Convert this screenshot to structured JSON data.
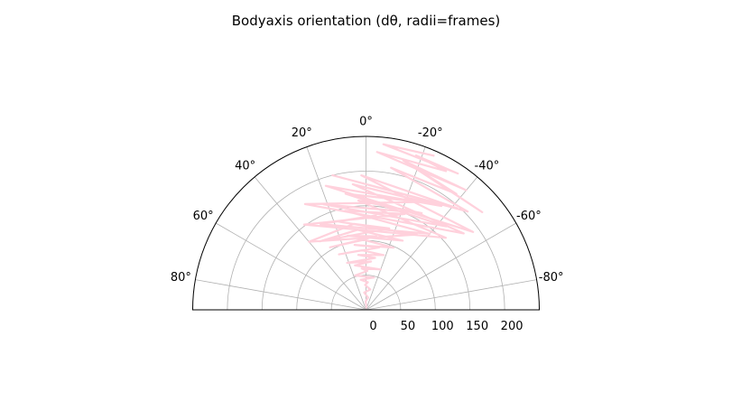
{
  "chart_data": {
    "type": "line",
    "projection": "polar-half",
    "title": "Bodyaxis orientation (dθ, radii=frames)",
    "theta_zero": "top",
    "theta_direction": "counterclockwise",
    "theta_range_deg": [
      -90,
      90
    ],
    "r_range": [
      0,
      250
    ],
    "r_ticks": [
      0,
      50,
      100,
      150,
      200
    ],
    "theta_ticks_deg": [
      80,
      60,
      40,
      20,
      0,
      -20,
      -40,
      -60,
      -80
    ],
    "theta_tick_labels": [
      "80°",
      "60°",
      "40°",
      "20°",
      "0°",
      "-20°",
      "-40°",
      "-60°",
      "-80°"
    ],
    "grid": true,
    "series": [
      {
        "color": "#ffd1dc",
        "points": [
          [
            0,
            2
          ],
          [
            -8,
            5
          ],
          [
            3,
            12
          ],
          [
            -10,
            18
          ],
          [
            6,
            25
          ],
          [
            -12,
            30
          ],
          [
            2,
            36
          ],
          [
            -4,
            40
          ],
          [
            10,
            44
          ],
          [
            -14,
            48
          ],
          [
            18,
            52
          ],
          [
            -2,
            56
          ],
          [
            6,
            60
          ],
          [
            -20,
            62
          ],
          [
            14,
            66
          ],
          [
            -6,
            70
          ],
          [
            22,
            73
          ],
          [
            -10,
            76
          ],
          [
            8,
            80
          ],
          [
            -18,
            83
          ],
          [
            4,
            86
          ],
          [
            26,
            89
          ],
          [
            -12,
            92
          ],
          [
            10,
            95
          ],
          [
            -24,
            98
          ],
          [
            2,
            101
          ],
          [
            30,
            104
          ],
          [
            -8,
            107
          ],
          [
            14,
            110
          ],
          [
            -28,
            113
          ],
          [
            6,
            116
          ],
          [
            34,
            119
          ],
          [
            -16,
            122
          ],
          [
            8,
            125
          ],
          [
            40,
            128
          ],
          [
            -34,
            131
          ],
          [
            18,
            134
          ],
          [
            -6,
            137
          ],
          [
            28,
            140
          ],
          [
            -40,
            143
          ],
          [
            12,
            146
          ],
          [
            -22,
            149
          ],
          [
            36,
            152
          ],
          [
            -48,
            155
          ],
          [
            4,
            158
          ],
          [
            -30,
            161
          ],
          [
            22,
            164
          ],
          [
            -44,
            167
          ],
          [
            10,
            170
          ],
          [
            -26,
            173
          ],
          [
            30,
            176
          ],
          [
            -52,
            179
          ],
          [
            6,
            182
          ],
          [
            -36,
            185
          ],
          [
            18,
            188
          ],
          [
            -54,
            191
          ],
          [
            2,
            194
          ],
          [
            -42,
            197
          ],
          [
            14,
            200
          ],
          [
            -46,
            204
          ],
          [
            -10,
            208
          ],
          [
            -38,
            212
          ],
          [
            -20,
            216
          ],
          [
            -50,
            219
          ],
          [
            -14,
            222
          ],
          [
            -40,
            225
          ],
          [
            -4,
            228
          ],
          [
            -30,
            231
          ],
          [
            -18,
            234
          ],
          [
            -34,
            237
          ],
          [
            -6,
            240
          ],
          [
            -24,
            243
          ]
        ]
      }
    ]
  }
}
